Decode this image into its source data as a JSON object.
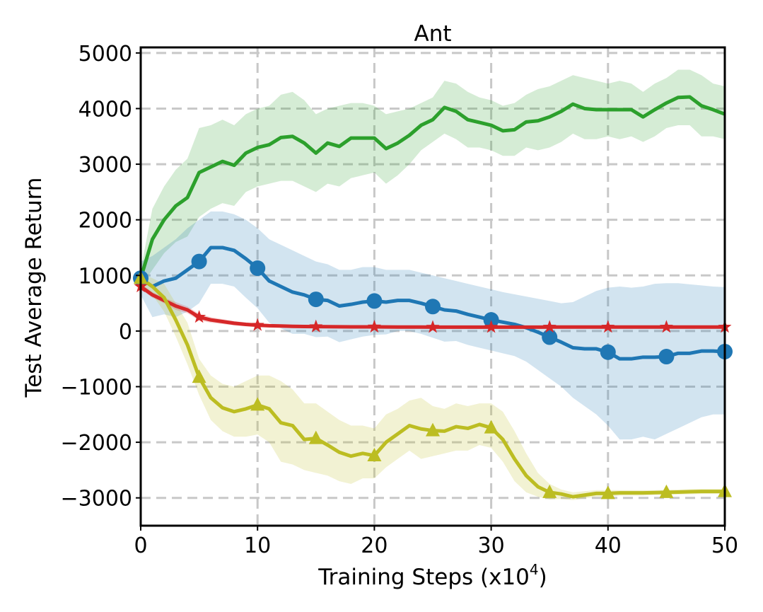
{
  "chart_data": {
    "type": "line",
    "title": "Ant",
    "xlabel": "Training Steps (x10",
    "xlabel_exponent": "4",
    "xlabel_suffix": ")",
    "ylabel": "Test Average Return",
    "xlim": [
      0,
      50
    ],
    "ylim": [
      -3500,
      5100
    ],
    "xticks": [
      0,
      10,
      20,
      30,
      40,
      50
    ],
    "yticks": [
      -3000,
      -2000,
      -1000,
      0,
      1000,
      2000,
      3000,
      4000,
      5000
    ],
    "xtick_labels": [
      "0",
      "10",
      "20",
      "30",
      "40",
      "50"
    ],
    "ytick_labels": [
      "−3000",
      "−2000",
      "−1000",
      "0",
      "1000",
      "2000",
      "3000",
      "4000",
      "5000"
    ],
    "grid": true,
    "x": [
      0,
      1,
      2,
      3,
      4,
      5,
      6,
      7,
      8,
      9,
      10,
      11,
      12,
      13,
      14,
      15,
      16,
      17,
      18,
      19,
      20,
      21,
      22,
      23,
      24,
      25,
      26,
      27,
      28,
      29,
      30,
      31,
      32,
      33,
      34,
      35,
      36,
      37,
      38,
      39,
      40,
      41,
      42,
      43,
      44,
      45,
      46,
      47,
      48,
      49,
      50
    ],
    "series": [
      {
        "name": "green",
        "color": "#2ca02c",
        "marker": "none",
        "values": [
          950,
          1650,
          2000,
          2250,
          2400,
          2850,
          2950,
          3050,
          2980,
          3200,
          3300,
          3350,
          3480,
          3500,
          3380,
          3200,
          3380,
          3320,
          3470,
          3470,
          3470,
          3280,
          3380,
          3520,
          3700,
          3800,
          4020,
          3950,
          3800,
          3750,
          3700,
          3600,
          3620,
          3760,
          3780,
          3850,
          3950,
          4080,
          4000,
          3980,
          3980,
          3980,
          3980,
          3850,
          3980,
          4100,
          4200,
          4210,
          4050,
          3980,
          3900
        ],
        "upper": [
          1100,
          2200,
          2600,
          2900,
          3100,
          3650,
          3700,
          3800,
          3700,
          3900,
          4000,
          4050,
          4250,
          4300,
          4150,
          3900,
          4000,
          4050,
          4100,
          4100,
          4050,
          3900,
          3950,
          4000,
          4100,
          4200,
          4500,
          4450,
          4300,
          4200,
          4150,
          4050,
          4100,
          4250,
          4350,
          4400,
          4500,
          4600,
          4550,
          4500,
          4450,
          4500,
          4450,
          4300,
          4450,
          4550,
          4700,
          4700,
          4600,
          4450,
          4400
        ],
        "lower": [
          800,
          1100,
          1400,
          1600,
          1700,
          2050,
          2200,
          2300,
          2250,
          2500,
          2600,
          2650,
          2700,
          2700,
          2600,
          2500,
          2650,
          2600,
          2750,
          2800,
          2850,
          2650,
          2800,
          3000,
          3250,
          3400,
          3550,
          3450,
          3300,
          3300,
          3250,
          3150,
          3150,
          3300,
          3250,
          3300,
          3400,
          3550,
          3450,
          3450,
          3500,
          3450,
          3500,
          3400,
          3500,
          3650,
          3700,
          3700,
          3500,
          3500,
          3450
        ]
      },
      {
        "name": "blue",
        "color": "#1f77b4",
        "marker": "circle",
        "values": [
          950,
          800,
          900,
          950,
          1100,
          1250,
          1500,
          1500,
          1450,
          1300,
          1130,
          900,
          800,
          700,
          650,
          570,
          550,
          450,
          480,
          520,
          540,
          520,
          550,
          550,
          500,
          440,
          380,
          360,
          300,
          250,
          200,
          160,
          120,
          60,
          -20,
          -110,
          -200,
          -300,
          -320,
          -320,
          -380,
          -500,
          -500,
          -470,
          -470,
          -460,
          -400,
          -400,
          -360,
          -360,
          -370
        ],
        "upper": [
          1250,
          1350,
          1500,
          1650,
          1850,
          2000,
          2150,
          2150,
          2100,
          2000,
          1850,
          1650,
          1550,
          1450,
          1350,
          1250,
          1200,
          1100,
          1100,
          1150,
          1150,
          1100,
          1100,
          1100,
          1050,
          1000,
          950,
          900,
          850,
          800,
          750,
          700,
          660,
          620,
          580,
          540,
          500,
          520,
          620,
          720,
          780,
          800,
          780,
          800,
          850,
          860,
          860,
          840,
          820,
          800,
          790
        ],
        "lower": [
          650,
          250,
          300,
          250,
          350,
          500,
          850,
          850,
          800,
          600,
          410,
          150,
          50,
          -50,
          -50,
          -110,
          -100,
          -200,
          -150,
          -100,
          -70,
          -60,
          0,
          0,
          -50,
          -120,
          -190,
          -180,
          -250,
          -300,
          -350,
          -400,
          -450,
          -550,
          -700,
          -850,
          -1000,
          -1200,
          -1350,
          -1500,
          -1700,
          -1950,
          -1950,
          -1900,
          -1950,
          -1850,
          -1750,
          -1650,
          -1550,
          -1500,
          -1500
        ]
      },
      {
        "name": "red",
        "color": "#d62728",
        "marker": "star",
        "values": [
          800,
          650,
          550,
          450,
          380,
          250,
          200,
          170,
          140,
          120,
          105,
          95,
          90,
          85,
          82,
          80,
          78,
          76,
          75,
          75,
          75,
          73,
          72,
          72,
          71,
          70,
          70,
          70,
          70,
          70,
          70,
          70,
          70,
          70,
          70,
          72,
          72,
          72,
          72,
          72,
          72,
          72,
          72,
          72,
          72,
          72,
          72,
          72,
          72,
          72,
          72
        ],
        "upper": [
          850,
          700,
          600,
          520,
          440,
          310,
          250,
          215,
          180,
          155,
          140,
          125,
          115,
          110,
          105,
          100,
          98,
          96,
          95,
          95,
          95,
          93,
          92,
          92,
          91,
          90,
          90,
          90,
          90,
          90,
          90,
          90,
          90,
          90,
          90,
          92,
          92,
          92,
          92,
          92,
          92,
          92,
          92,
          92,
          92,
          92,
          92,
          92,
          92,
          92,
          92
        ],
        "lower": [
          750,
          600,
          500,
          380,
          320,
          190,
          150,
          125,
          100,
          85,
          70,
          65,
          65,
          60,
          59,
          60,
          58,
          56,
          55,
          55,
          55,
          53,
          52,
          52,
          51,
          50,
          50,
          50,
          50,
          50,
          50,
          50,
          50,
          50,
          50,
          52,
          52,
          52,
          52,
          52,
          52,
          52,
          52,
          52,
          52,
          52,
          52,
          52,
          52,
          52,
          52
        ]
      },
      {
        "name": "olive",
        "color": "#bcbd22",
        "marker": "triangle",
        "values": [
          950,
          800,
          600,
          200,
          -250,
          -830,
          -1200,
          -1380,
          -1450,
          -1400,
          -1330,
          -1400,
          -1650,
          -1700,
          -1950,
          -1930,
          -2050,
          -2180,
          -2250,
          -2200,
          -2240,
          -2000,
          -1850,
          -1700,
          -1760,
          -1790,
          -1800,
          -1720,
          -1750,
          -1680,
          -1740,
          -1950,
          -2300,
          -2600,
          -2800,
          -2900,
          -2930,
          -2980,
          -2950,
          -2920,
          -2920,
          -2910,
          -2910,
          -2910,
          -2905,
          -2900,
          -2895,
          -2890,
          -2885,
          -2885,
          -2885
        ],
        "upper": [
          1050,
          950,
          850,
          500,
          150,
          -500,
          -800,
          -950,
          -1000,
          -900,
          -800,
          -800,
          -900,
          -1050,
          -1300,
          -1300,
          -1450,
          -1600,
          -1700,
          -1700,
          -1750,
          -1500,
          -1400,
          -1250,
          -1200,
          -1350,
          -1400,
          -1300,
          -1350,
          -1300,
          -1300,
          -1450,
          -1800,
          -2200,
          -2550,
          -2750,
          -2850,
          -2900,
          -2880,
          -2860,
          -2860,
          -2860,
          -2860,
          -2860,
          -2860,
          -2855,
          -2850,
          -2845,
          -2840,
          -2840,
          -2840
        ],
        "lower": [
          850,
          650,
          350,
          -100,
          -600,
          -1150,
          -1600,
          -1800,
          -1900,
          -1900,
          -1860,
          -2000,
          -2350,
          -2400,
          -2500,
          -2550,
          -2600,
          -2700,
          -2750,
          -2650,
          -2650,
          -2450,
          -2300,
          -2150,
          -2300,
          -2250,
          -2200,
          -2150,
          -2150,
          -2050,
          -2100,
          -2350,
          -2700,
          -2900,
          -2980,
          -3030,
          -3020,
          -3040,
          -3010,
          -2980,
          -2980,
          -2960,
          -2960,
          -2960,
          -2950,
          -2945,
          -2940,
          -2935,
          -2930,
          -2930,
          -2930
        ]
      }
    ]
  }
}
